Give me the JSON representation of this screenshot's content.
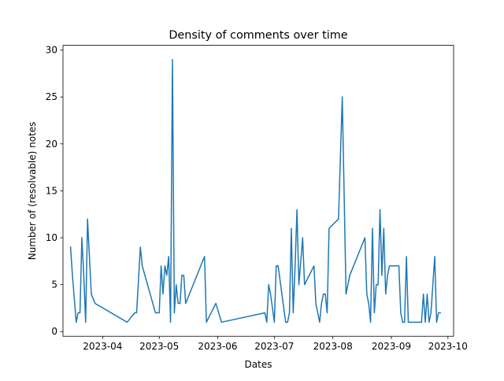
{
  "chart_data": {
    "type": "line",
    "title": "Density of comments over time",
    "xlabel": "Dates",
    "ylabel": "Number of (resolvable) notes",
    "grid": false,
    "line_color": "#1f77b4",
    "xlim": [
      "2023-03-11",
      "2023-10-04"
    ],
    "ylim": [
      -0.5,
      30.5
    ],
    "x_ticks": [
      {
        "date": "2023-04-01",
        "label": "2023-04"
      },
      {
        "date": "2023-05-01",
        "label": "2023-05"
      },
      {
        "date": "2023-06-01",
        "label": "2023-06"
      },
      {
        "date": "2023-07-01",
        "label": "2023-07"
      },
      {
        "date": "2023-08-01",
        "label": "2023-08"
      },
      {
        "date": "2023-09-01",
        "label": "2023-09"
      },
      {
        "date": "2023-10-01",
        "label": "2023-10"
      }
    ],
    "y_ticks": [
      {
        "value": 0,
        "label": "0"
      },
      {
        "value": 5,
        "label": "5"
      },
      {
        "value": 10,
        "label": "10"
      },
      {
        "value": 15,
        "label": "15"
      },
      {
        "value": 20,
        "label": "20"
      },
      {
        "value": 25,
        "label": "25"
      },
      {
        "value": 30,
        "label": "30"
      }
    ],
    "x": [
      "2023-03-15",
      "2023-03-16",
      "2023-03-18",
      "2023-03-19",
      "2023-03-20",
      "2023-03-21",
      "2023-03-22",
      "2023-03-23",
      "2023-03-24",
      "2023-03-26",
      "2023-03-28",
      "2023-04-14",
      "2023-04-18",
      "2023-04-19",
      "2023-04-21",
      "2023-04-22",
      "2023-04-29",
      "2023-04-30",
      "2023-05-01",
      "2023-05-02",
      "2023-05-03",
      "2023-05-04",
      "2023-05-05",
      "2023-05-06",
      "2023-05-07",
      "2023-05-08",
      "2023-05-09",
      "2023-05-10",
      "2023-05-11",
      "2023-05-12",
      "2023-05-13",
      "2023-05-14",
      "2023-05-15",
      "2023-05-25",
      "2023-05-26",
      "2023-05-31",
      "2023-06-03",
      "2023-06-26",
      "2023-06-27",
      "2023-06-28",
      "2023-06-29",
      "2023-07-01",
      "2023-07-02",
      "2023-07-03",
      "2023-07-07",
      "2023-07-08",
      "2023-07-09",
      "2023-07-10",
      "2023-07-11",
      "2023-07-12",
      "2023-07-13",
      "2023-07-14",
      "2023-07-16",
      "2023-07-17",
      "2023-07-22",
      "2023-07-23",
      "2023-07-25",
      "2023-07-26",
      "2023-07-27",
      "2023-07-28",
      "2023-07-29",
      "2023-07-30",
      "2023-08-04",
      "2023-08-06",
      "2023-08-08",
      "2023-08-10",
      "2023-08-18",
      "2023-08-19",
      "2023-08-20",
      "2023-08-21",
      "2023-08-22",
      "2023-08-23",
      "2023-08-24",
      "2023-08-25",
      "2023-08-26",
      "2023-08-27",
      "2023-08-28",
      "2023-08-29",
      "2023-08-30",
      "2023-08-31",
      "2023-09-05",
      "2023-09-06",
      "2023-09-07",
      "2023-09-08",
      "2023-09-09",
      "2023-09-10",
      "2023-09-11",
      "2023-09-12",
      "2023-09-17",
      "2023-09-18",
      "2023-09-19",
      "2023-09-20",
      "2023-09-21",
      "2023-09-22",
      "2023-09-23",
      "2023-09-24",
      "2023-09-25",
      "2023-09-26",
      "2023-09-27"
    ],
    "series": [
      {
        "values": [
          9,
          6,
          1,
          2,
          2,
          10,
          6,
          1,
          12,
          4,
          3,
          1,
          2,
          2,
          9,
          7,
          2,
          2,
          2,
          7,
          4,
          7,
          6,
          8,
          1,
          29,
          2,
          5,
          3,
          3,
          6,
          6,
          3,
          8,
          1,
          3,
          1,
          2,
          1,
          5,
          4,
          1,
          7,
          7,
          1,
          1,
          2,
          11,
          2,
          7,
          13,
          5,
          10,
          5,
          7,
          3,
          1,
          3,
          4,
          4,
          2,
          11,
          12,
          25,
          4,
          6,
          10,
          4,
          3,
          1,
          11,
          2,
          5,
          5,
          13,
          6,
          11,
          4,
          6,
          7,
          7,
          2,
          1,
          1,
          8,
          1,
          1,
          1,
          1,
          4,
          1,
          4,
          1,
          2,
          5,
          8,
          1,
          2,
          2
        ]
      }
    ]
  }
}
